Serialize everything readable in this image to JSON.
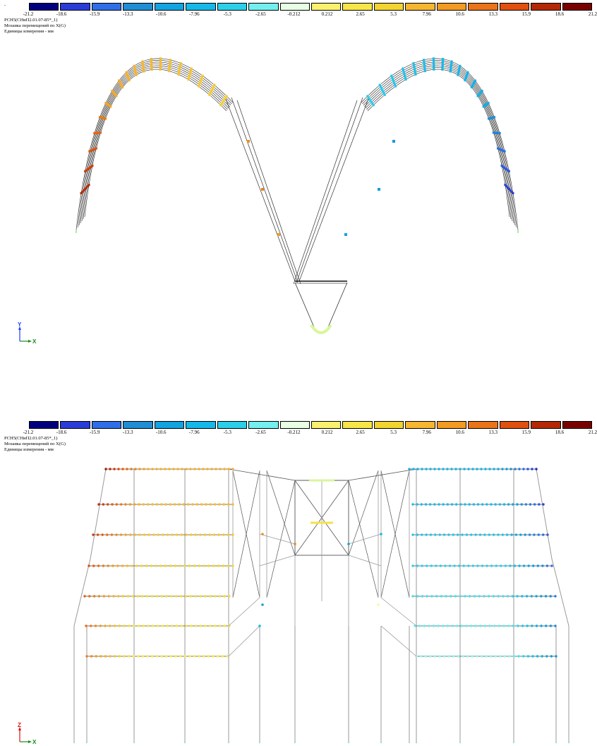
{
  "legend": {
    "ticks": [
      "-21.2",
      "-18.6",
      "-15.9",
      "-13.3",
      "-10.6",
      "-7.96",
      "-5.3",
      "-2.65",
      "-0.212",
      "0.212",
      "2.65",
      "5.3",
      "7.96",
      "10.6",
      "13.3",
      "15.9",
      "18.6",
      "21.2"
    ],
    "colors": [
      "#00007f",
      "#2a3cd8",
      "#2f6ee8",
      "#1f8ed4",
      "#12a3e0",
      "#16b8ea",
      "#2ccfe8",
      "#74efef",
      "#e8ffe4",
      "#faf26e",
      "#f8e648",
      "#f2d430",
      "#f6b630",
      "#f29a22",
      "#ea7418",
      "#e0500e",
      "#b42806",
      "#7a0000"
    ]
  },
  "panels": [
    {
      "id": "top",
      "header_dot": ".",
      "caption_lines": [
        "РСН5(СНиП2.01.07-85*_1)",
        "Мозаика перемещений по X(G)",
        "Единицы измерения - мм"
      ],
      "axis": {
        "up": "Y",
        "right": "X"
      }
    },
    {
      "id": "bottom",
      "header_dot": "",
      "caption_lines": [
        "РСН5(СНиП2.01.07-85*_1)",
        "Мозаика перемещений по X(G)",
        "Единицы измерения - мм"
      ],
      "axis": {
        "up": "Z",
        "right": "X"
      }
    }
  ]
}
